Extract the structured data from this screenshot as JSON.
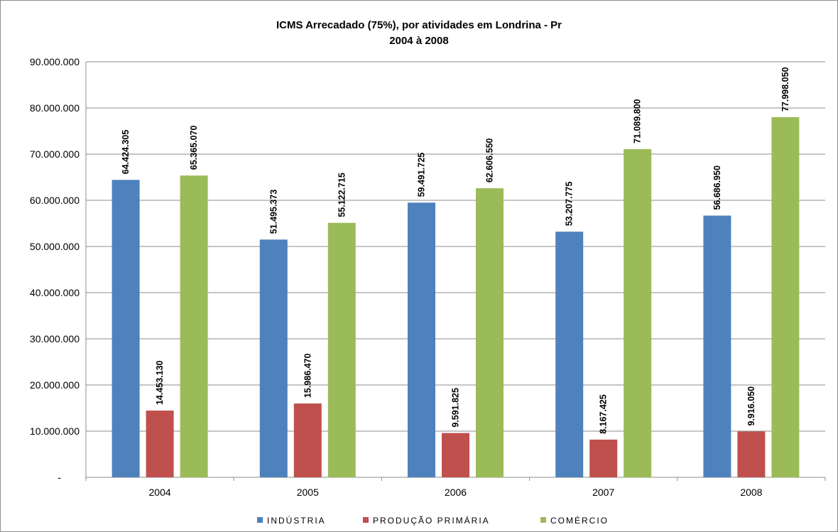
{
  "chart_data": {
    "type": "bar",
    "title": "ICMS Arrecadado (75%), por atividades em Londrina - Pr",
    "subtitle": "2004 à 2008",
    "categories": [
      "2004",
      "2005",
      "2006",
      "2007",
      "2008"
    ],
    "series": [
      {
        "name": "INDÚSTRIA",
        "color": "#4f81bd",
        "values": [
          64424305,
          51495373,
          59491725,
          53207775,
          56686950
        ],
        "labels": [
          "64.424.305",
          "51.495.373",
          "59.491.725",
          "53.207.775",
          "56.686.950"
        ]
      },
      {
        "name": "PRODUÇÃO PRIMÁRIA",
        "color": "#c0504d",
        "values": [
          14453130,
          15986470,
          9591825,
          8167425,
          9916050
        ],
        "labels": [
          "14.453.130",
          "15.986.470",
          "9.591.825",
          "8.167.425",
          "9.916.050"
        ]
      },
      {
        "name": "COMÉRCIO",
        "color": "#9bbb59",
        "values": [
          65365070,
          55122715,
          62606550,
          71089800,
          77998050
        ],
        "labels": [
          "65.365.070",
          "55.122.715",
          "62.606.550",
          "71.089.800",
          "77.998.050"
        ]
      }
    ],
    "ylim": [
      0,
      90000000
    ],
    "yticks": [
      0,
      10000000,
      20000000,
      30000000,
      40000000,
      50000000,
      60000000,
      70000000,
      80000000,
      90000000
    ],
    "ytick_labels": [
      "-",
      "10.000.000",
      "20.000.000",
      "30.000.000",
      "40.000.000",
      "50.000.000",
      "60.000.000",
      "70.000.000",
      "80.000.000",
      "90.000.000"
    ],
    "grid": true,
    "legend": "bottom"
  }
}
